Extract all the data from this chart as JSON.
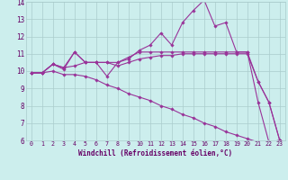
{
  "xlabel": "Windchill (Refroidissement éolien,°C)",
  "background_color": "#cceeed",
  "grid_color": "#aacccc",
  "line_color": "#993399",
  "xlim": [
    -0.5,
    23.5
  ],
  "ylim": [
    6,
    14
  ],
  "xticks": [
    0,
    1,
    2,
    3,
    4,
    5,
    6,
    7,
    8,
    9,
    10,
    11,
    12,
    13,
    14,
    15,
    16,
    17,
    18,
    19,
    20,
    21,
    22,
    23
  ],
  "yticks": [
    6,
    7,
    8,
    9,
    10,
    11,
    12,
    13,
    14
  ],
  "series": {
    "line1": [
      9.9,
      9.9,
      10.4,
      10.1,
      11.1,
      10.5,
      10.5,
      9.7,
      10.5,
      10.7,
      11.2,
      11.5,
      12.2,
      11.5,
      12.8,
      13.5,
      14.1,
      12.6,
      12.8,
      11.1,
      11.1,
      8.2,
      5.9,
      6.0
    ],
    "line2": [
      9.9,
      9.9,
      10.4,
      10.2,
      11.1,
      10.5,
      10.5,
      10.5,
      10.5,
      10.8,
      11.1,
      11.1,
      11.1,
      11.1,
      11.1,
      11.1,
      11.1,
      11.1,
      11.1,
      11.1,
      11.1,
      9.4,
      8.2,
      6.0
    ],
    "line3": [
      9.9,
      9.9,
      10.4,
      10.2,
      10.3,
      10.5,
      10.5,
      10.5,
      10.3,
      10.5,
      10.7,
      10.8,
      10.9,
      10.9,
      11.0,
      11.0,
      11.0,
      11.0,
      11.0,
      11.0,
      11.0,
      9.4,
      8.2,
      6.0
    ],
    "line4": [
      9.9,
      9.9,
      10.0,
      9.8,
      9.8,
      9.7,
      9.5,
      9.2,
      9.0,
      8.7,
      8.5,
      8.3,
      8.0,
      7.8,
      7.5,
      7.3,
      7.0,
      6.8,
      6.5,
      6.3,
      6.1,
      5.9,
      5.9,
      6.0
    ]
  }
}
